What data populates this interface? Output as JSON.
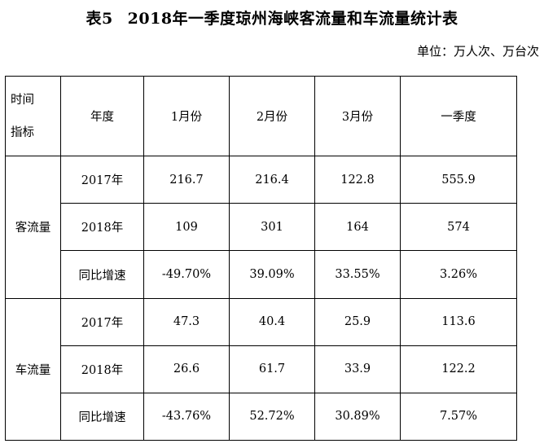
{
  "title": {
    "table_no": "表5",
    "text": "2018年一季度琼州海峡客流量和车流量统计表"
  },
  "unit": "单位：万人次、万台次",
  "header": {
    "corner_top": "时间",
    "corner_bottom": "指标",
    "year_col": "年度",
    "cols": [
      "1月份",
      "2月份",
      "3月份",
      "一季度"
    ]
  },
  "groups": [
    {
      "name": "客流量",
      "rows": [
        {
          "label": "2017年",
          "values": [
            "216.7",
            "216.4",
            "122.8",
            "555.9"
          ]
        },
        {
          "label": "2018年",
          "values": [
            "109",
            "301",
            "164",
            "574"
          ]
        },
        {
          "label": "同比增速",
          "values": [
            "-49.70%",
            "39.09%",
            "33.55%",
            "3.26%"
          ]
        }
      ]
    },
    {
      "name": "车流量",
      "rows": [
        {
          "label": "2017年",
          "values": [
            "47.3",
            "40.4",
            "25.9",
            "113.6"
          ]
        },
        {
          "label": "2018年",
          "values": [
            "26.6",
            "61.7",
            "33.9",
            "122.2"
          ]
        },
        {
          "label": "同比增速",
          "values": [
            "-43.76%",
            "52.72%",
            "30.89%",
            "7.57%"
          ]
        }
      ]
    }
  ]
}
